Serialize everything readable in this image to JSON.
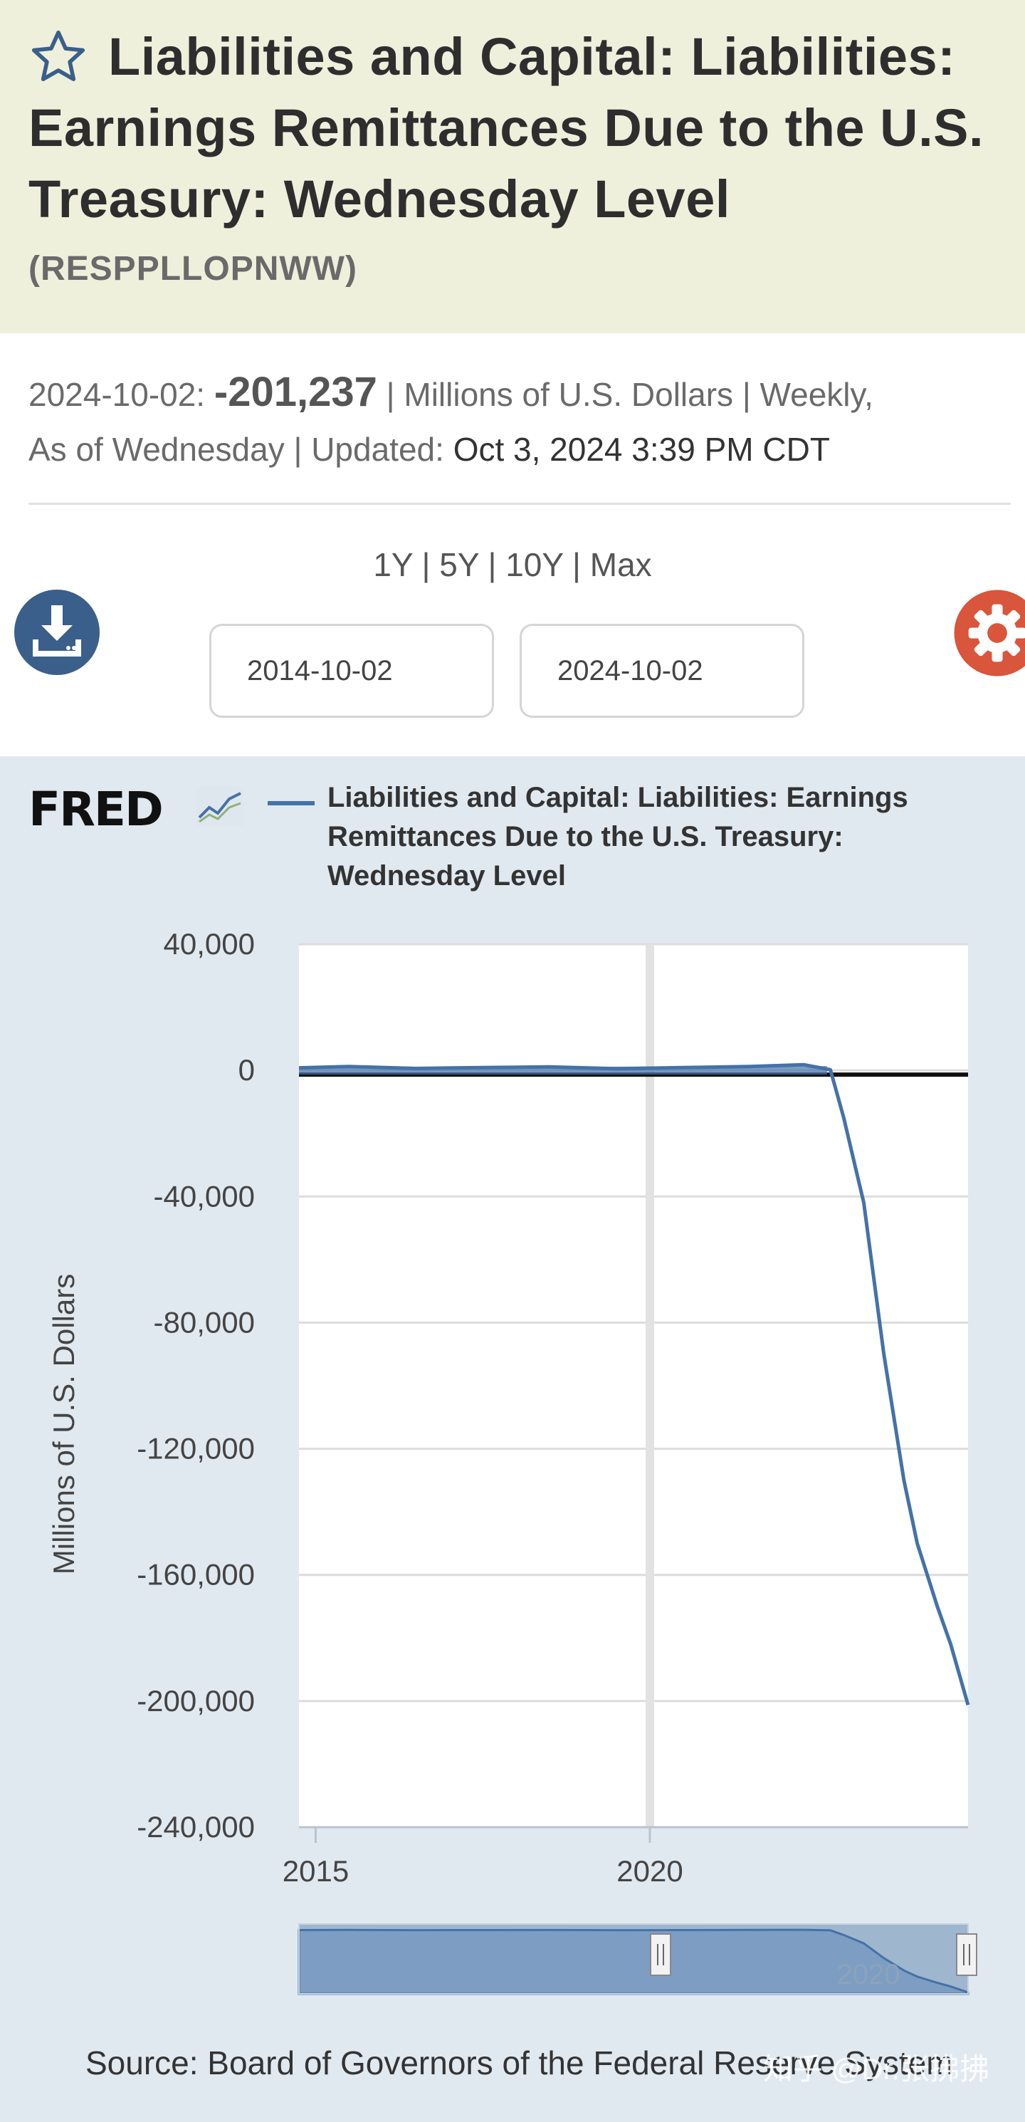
{
  "header": {
    "title": "Liabilities and Capital: Liabilities: Earnings Remittances Due to the U.S. Treasury: Wednesday Level",
    "series_id": "(RESPPLLOPNWW)"
  },
  "meta": {
    "date": "2024-10-02:",
    "value": "-201,237",
    "units": "| Millions of U.S. Dollars | Weekly,",
    "freq": "As of Wednesday | Updated:",
    "updated": "Oct 3, 2024 3:39 PM CDT"
  },
  "ranges": [
    "1Y",
    "5Y",
    "10Y",
    "Max"
  ],
  "dates": {
    "start": "2014-10-02",
    "end": "2024-10-02"
  },
  "icons": {
    "favorite": "star-icon",
    "download": "download-icon",
    "settings": "gear-icon"
  },
  "colors": {
    "header_bg": "#eff0dc",
    "chart_bg": "#e1e9f0",
    "series": "#4472a8",
    "download": "#3a5f8a",
    "settings": "#d9553b"
  },
  "legend": {
    "series_name": "Liabilities and Capital: Liabilities: Earnings Remittances Due to the U.S. Treasury: Wednesday Level"
  },
  "chart_data": {
    "type": "line",
    "ylabel": "Millions of U.S. Dollars",
    "ylim": [
      -240000,
      40000
    ],
    "yticks": [
      40000,
      0,
      -40000,
      -80000,
      -120000,
      -160000,
      -200000,
      -240000
    ],
    "ytick_labels": [
      "40,000",
      "0",
      "-40,000",
      "-80,000",
      "-120,000",
      "-160,000",
      "-200,000",
      "-240,000"
    ],
    "xlim": [
      2014.75,
      2024.76
    ],
    "xticks": [
      2015,
      2020
    ],
    "xtick_labels": [
      "2015",
      "2020"
    ],
    "grid": true,
    "legend": "top",
    "series": [
      {
        "name": "Liabilities and Capital: Liabilities: Earnings Remittances Due to the U.S. Treasury: Wednesday Level",
        "x": [
          2014.75,
          2015.5,
          2016.5,
          2017.5,
          2018.5,
          2019.5,
          2020.5,
          2021.5,
          2022.3,
          2022.7,
          2022.9,
          2023.2,
          2023.5,
          2023.8,
          2024.0,
          2024.3,
          2024.5,
          2024.76
        ],
        "y": [
          800,
          1200,
          600,
          900,
          1100,
          500,
          900,
          1200,
          1800,
          200,
          -15000,
          -42000,
          -90000,
          -130000,
          -150000,
          -170000,
          -182000,
          -201237
        ]
      }
    ],
    "navigator": {
      "range_label": "2020"
    }
  },
  "source": "Source: Board of Governors of the Federal Reserve System",
  "watermark": "知乎 @Dr.张拂拂"
}
